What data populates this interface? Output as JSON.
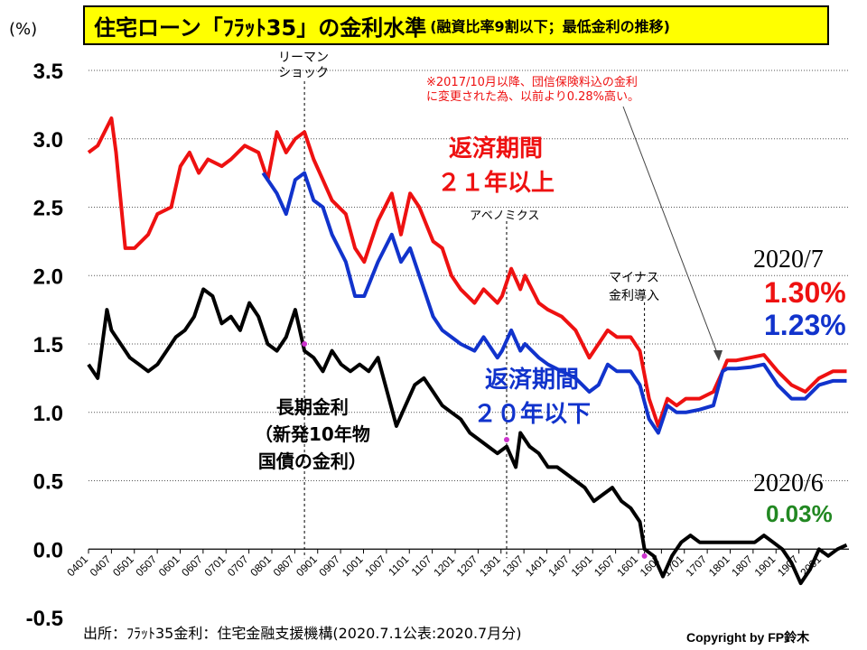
{
  "title": {
    "main": "住宅ローン「ﾌﾗｯﾄ35」の金利水準",
    "sub": "(融資比率9割以下；最低金利の推移)"
  },
  "unit_label": "(%)",
  "source": "出所：ﾌﾗｯﾄ35金利：住宅金融支援機構(2020.7.1公表:2020.7月分)",
  "copyright": "Copyright by FP鈴木",
  "annotations": {
    "lehman": "リーマン\nショック",
    "abenomics": "アベノミクス",
    "negative": "マイナス\n金利導入",
    "note": "※2017/10月以降、団信保険料込の金利\nに変更された為、以前より0.28%高い。",
    "red_label": "返済期間\n２１年以上",
    "blue_label": "返済期間\n２０年以下",
    "black_label": "長期金利\n（新発10年物\n国債の金利）",
    "date1": "2020/7",
    "date2": "2020/6",
    "val_red": "1.30%",
    "val_blue": "1.23%",
    "val_black": "0.03%"
  },
  "colors": {
    "red": "#ee1111",
    "blue": "#1133cc",
    "black": "#000000",
    "green": "#228822",
    "title_bg": "#ffff00"
  },
  "chart_data": {
    "type": "line",
    "ylim": [
      -0.5,
      3.5
    ],
    "yticks": [
      3.5,
      3.0,
      2.5,
      2.0,
      1.5,
      1.0,
      0.5,
      0.0,
      -0.5
    ],
    "x_tick_labels": [
      "0401",
      "0407",
      "0501",
      "0507",
      "0601",
      "0607",
      "0701",
      "0707",
      "0801",
      "0807",
      "0901",
      "0907",
      "1001",
      "1007",
      "1101",
      "1107",
      "1201",
      "1207",
      "1301",
      "1307",
      "1401",
      "1407",
      "1501",
      "1507",
      "1601",
      "1607",
      "1701",
      "1707",
      "1801",
      "1807",
      "1901",
      "1907",
      "2001"
    ],
    "series": [
      {
        "name": "返済期間２１年以上",
        "color": "#ee1111",
        "x": [
          2004.0,
          2004.2,
          2004.5,
          2004.6,
          2004.8,
          2005.0,
          2005.3,
          2005.5,
          2005.8,
          2006.0,
          2006.2,
          2006.4,
          2006.6,
          2006.9,
          2007.1,
          2007.4,
          2007.7,
          2007.9,
          2008.1,
          2008.3,
          2008.5,
          2008.7,
          2008.9,
          2009.1,
          2009.3,
          2009.6,
          2009.8,
          2010.0,
          2010.3,
          2010.6,
          2010.8,
          2011.0,
          2011.2,
          2011.5,
          2011.7,
          2011.9,
          2012.1,
          2012.4,
          2012.6,
          2012.9,
          2013.0,
          2013.2,
          2013.4,
          2013.5,
          2013.8,
          2014.0,
          2014.3,
          2014.6,
          2014.9,
          2015.1,
          2015.3,
          2015.5,
          2015.8,
          2016.0,
          2016.2,
          2016.4,
          2016.6,
          2016.8,
          2017.0,
          2017.3,
          2017.6,
          2017.8,
          2017.9,
          2018.1,
          2018.4,
          2018.7,
          2019.0,
          2019.3,
          2019.6,
          2019.9,
          2020.2,
          2020.5
        ],
        "values": [
          2.9,
          2.95,
          3.15,
          2.9,
          2.2,
          2.2,
          2.3,
          2.45,
          2.5,
          2.8,
          2.9,
          2.75,
          2.85,
          2.8,
          2.85,
          2.95,
          2.9,
          2.7,
          3.05,
          2.9,
          3.0,
          3.05,
          2.85,
          2.7,
          2.55,
          2.45,
          2.2,
          2.1,
          2.4,
          2.6,
          2.3,
          2.6,
          2.5,
          2.25,
          2.2,
          2.0,
          1.9,
          1.8,
          1.9,
          1.8,
          1.85,
          2.05,
          1.9,
          2.0,
          1.8,
          1.75,
          1.7,
          1.6,
          1.4,
          1.5,
          1.6,
          1.55,
          1.55,
          1.45,
          1.1,
          0.9,
          1.1,
          1.05,
          1.1,
          1.1,
          1.15,
          1.3,
          1.38,
          1.38,
          1.4,
          1.42,
          1.3,
          1.2,
          1.15,
          1.25,
          1.3,
          1.3
        ]
      },
      {
        "name": "返済期間２０年以下",
        "color": "#1133cc",
        "x": [
          2007.8,
          2008.1,
          2008.3,
          2008.5,
          2008.7,
          2008.9,
          2009.1,
          2009.3,
          2009.6,
          2009.8,
          2010.0,
          2010.3,
          2010.6,
          2010.8,
          2011.0,
          2011.2,
          2011.5,
          2011.7,
          2011.9,
          2012.1,
          2012.4,
          2012.6,
          2012.9,
          2013.0,
          2013.2,
          2013.4,
          2013.5,
          2013.8,
          2014.0,
          2014.3,
          2014.6,
          2014.9,
          2015.1,
          2015.3,
          2015.5,
          2015.8,
          2016.0,
          2016.2,
          2016.4,
          2016.6,
          2016.8,
          2017.0,
          2017.3,
          2017.6,
          2017.8,
          2017.9,
          2018.1,
          2018.4,
          2018.7,
          2019.0,
          2019.3,
          2019.6,
          2019.9,
          2020.2,
          2020.5
        ],
        "values": [
          2.75,
          2.6,
          2.45,
          2.7,
          2.75,
          2.55,
          2.5,
          2.3,
          2.1,
          1.85,
          1.85,
          2.1,
          2.3,
          2.1,
          2.2,
          2.0,
          1.7,
          1.6,
          1.55,
          1.5,
          1.45,
          1.55,
          1.4,
          1.45,
          1.6,
          1.45,
          1.5,
          1.4,
          1.35,
          1.3,
          1.25,
          1.15,
          1.2,
          1.35,
          1.3,
          1.3,
          1.2,
          0.95,
          0.85,
          1.05,
          1.0,
          1.0,
          1.02,
          1.05,
          1.3,
          1.32,
          1.32,
          1.33,
          1.35,
          1.2,
          1.1,
          1.1,
          1.2,
          1.23,
          1.23
        ]
      },
      {
        "name": "長期金利",
        "color": "#000000",
        "x": [
          2004.0,
          2004.2,
          2004.4,
          2004.5,
          2004.7,
          2004.9,
          2005.1,
          2005.3,
          2005.5,
          2005.7,
          2005.9,
          2006.1,
          2006.3,
          2006.5,
          2006.7,
          2006.9,
          2007.1,
          2007.3,
          2007.5,
          2007.7,
          2007.9,
          2008.1,
          2008.3,
          2008.5,
          2008.7,
          2008.9,
          2009.1,
          2009.3,
          2009.5,
          2009.7,
          2009.9,
          2010.1,
          2010.3,
          2010.5,
          2010.7,
          2010.9,
          2011.1,
          2011.3,
          2011.5,
          2011.7,
          2011.9,
          2012.1,
          2012.3,
          2012.5,
          2012.7,
          2012.9,
          2013.1,
          2013.3,
          2013.4,
          2013.6,
          2013.8,
          2014.0,
          2014.2,
          2014.4,
          2014.6,
          2014.8,
          2015.0,
          2015.2,
          2015.4,
          2015.6,
          2015.8,
          2016.0,
          2016.1,
          2016.3,
          2016.5,
          2016.7,
          2016.9,
          2017.1,
          2017.3,
          2017.5,
          2017.7,
          2017.9,
          2018.1,
          2018.3,
          2018.5,
          2018.7,
          2018.9,
          2019.1,
          2019.3,
          2019.5,
          2019.7,
          2019.9,
          2020.1,
          2020.3,
          2020.5
        ],
        "values": [
          1.35,
          1.25,
          1.75,
          1.6,
          1.5,
          1.4,
          1.35,
          1.3,
          1.35,
          1.45,
          1.55,
          1.6,
          1.7,
          1.9,
          1.85,
          1.65,
          1.7,
          1.6,
          1.8,
          1.7,
          1.5,
          1.45,
          1.55,
          1.75,
          1.45,
          1.4,
          1.3,
          1.45,
          1.35,
          1.3,
          1.35,
          1.3,
          1.4,
          1.15,
          0.9,
          1.05,
          1.2,
          1.25,
          1.15,
          1.05,
          1.0,
          0.95,
          0.85,
          0.8,
          0.75,
          0.7,
          0.75,
          0.6,
          0.85,
          0.75,
          0.7,
          0.6,
          0.6,
          0.55,
          0.5,
          0.45,
          0.35,
          0.4,
          0.45,
          0.35,
          0.3,
          0.2,
          0.0,
          -0.05,
          -0.2,
          -0.05,
          0.05,
          0.1,
          0.05,
          0.05,
          0.05,
          0.05,
          0.05,
          0.05,
          0.05,
          0.1,
          0.05,
          0.0,
          -0.1,
          -0.25,
          -0.15,
          0.0,
          -0.05,
          0.0,
          0.03
        ]
      }
    ],
    "xlim": [
      2004.0,
      2020.55
    ]
  }
}
